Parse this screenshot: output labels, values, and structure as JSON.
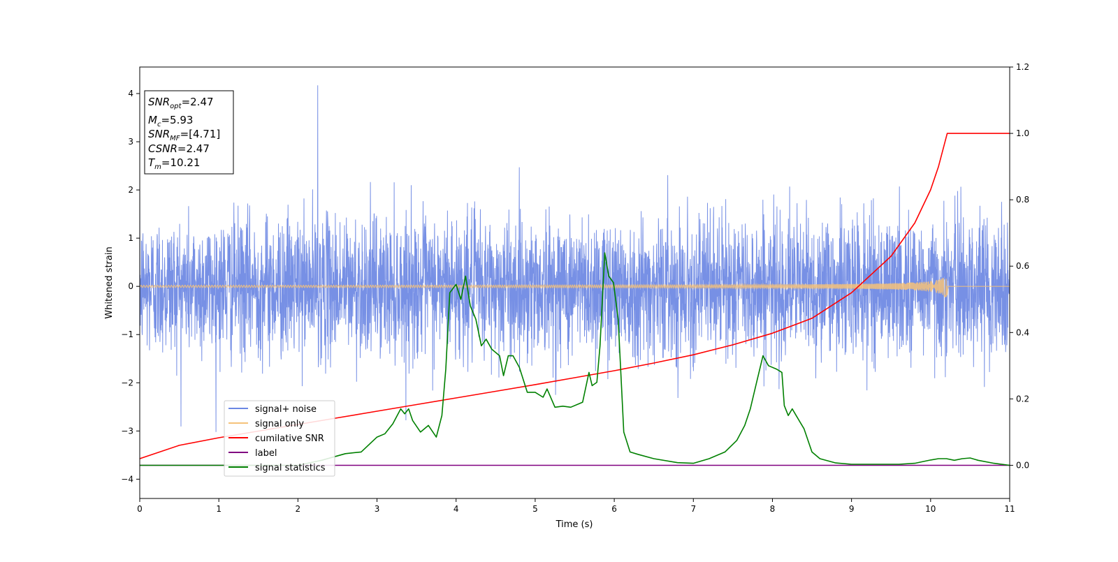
{
  "chart_data": {
    "type": "line",
    "title": "",
    "xlabel": "Time (s)",
    "ylabel": "Whitened strain",
    "y2label": "",
    "xlim": [
      0,
      11
    ],
    "ylim": [
      -4.4,
      4.55
    ],
    "y2lim": [
      -0.1,
      1.2
    ],
    "x_ticks": [
      0,
      1,
      2,
      3,
      4,
      5,
      6,
      7,
      8,
      9,
      10,
      11
    ],
    "x_tick_labels": [
      "0",
      "1",
      "2",
      "3",
      "4",
      "5",
      "6",
      "7",
      "8",
      "9",
      "10",
      "11"
    ],
    "y_ticks": [
      -4,
      -3,
      -2,
      -1,
      0,
      1,
      2,
      3,
      4
    ],
    "y_tick_labels": [
      "−4",
      "−3",
      "−2",
      "−1",
      "0",
      "1",
      "2",
      "3",
      "4"
    ],
    "y2_ticks": [
      0.0,
      0.2,
      0.4,
      0.6,
      0.8,
      1.0,
      1.2
    ],
    "y2_tick_labels": [
      "0.0",
      "0.2",
      "0.4",
      "0.6",
      "0.8",
      "1.0",
      "1.2"
    ],
    "grid": false,
    "legend_position": "lower-left",
    "infobox": {
      "lines": [
        {
          "base": "SNR",
          "sub": "opt",
          "rest": "=2.47"
        },
        {
          "base": "M",
          "sub": "c",
          "rest": "=5.93"
        },
        {
          "base": "SNR",
          "sub": "MF",
          "rest": "=[4.71]"
        },
        {
          "base": "CSNR",
          "sub": "",
          "rest": "=2.47"
        },
        {
          "base": "T",
          "sub": "m",
          "rest": "=10.21"
        }
      ]
    },
    "series": [
      {
        "name": "signal+ noise",
        "axis": "left",
        "color": "#6b87e3",
        "kind": "noise",
        "noise_sigma": 0.72,
        "noise_extreme": 4.17,
        "samples": 4096
      },
      {
        "name": "signal only",
        "axis": "left",
        "color": "#f5c27a",
        "kind": "chirp",
        "chirp_merger_time": 10.21,
        "chirp_peak_amplitude": 0.27
      },
      {
        "name": "cumilative SNR",
        "axis": "right",
        "color": "#ff0000",
        "x": [
          0,
          0.5,
          1,
          1.5,
          2,
          2.5,
          3,
          3.5,
          4,
          4.5,
          5,
          5.5,
          6,
          6.5,
          7,
          7.5,
          8,
          8.5,
          9,
          9.5,
          9.8,
          10,
          10.1,
          10.21,
          10.5,
          11
        ],
        "values": [
          0.02,
          0.06,
          0.083,
          0.103,
          0.123,
          0.143,
          0.163,
          0.183,
          0.203,
          0.223,
          0.243,
          0.264,
          0.285,
          0.308,
          0.333,
          0.363,
          0.398,
          0.443,
          0.52,
          0.63,
          0.73,
          0.83,
          0.9,
          1.0,
          1.0,
          1.0
        ]
      },
      {
        "name": "label",
        "axis": "right",
        "color": "#800080",
        "x": [
          0,
          11
        ],
        "values": [
          0.0,
          0.0
        ]
      },
      {
        "name": "signal statistics",
        "axis": "right",
        "color": "#008000",
        "x": [
          0,
          1.0,
          2.0,
          2.3,
          2.6,
          2.8,
          3.0,
          3.1,
          3.2,
          3.3,
          3.35,
          3.4,
          3.45,
          3.55,
          3.65,
          3.75,
          3.82,
          3.87,
          3.92,
          4.0,
          4.06,
          4.12,
          4.18,
          4.25,
          4.32,
          4.38,
          4.45,
          4.55,
          4.6,
          4.66,
          4.72,
          4.8,
          4.9,
          5.0,
          5.1,
          5.15,
          5.25,
          5.35,
          5.45,
          5.55,
          5.6,
          5.68,
          5.72,
          5.78,
          5.82,
          5.88,
          5.93,
          5.99,
          6.05,
          6.12,
          6.2,
          6.3,
          6.5,
          6.8,
          7.0,
          7.2,
          7.4,
          7.55,
          7.65,
          7.72,
          7.8,
          7.88,
          7.95,
          8.05,
          8.12,
          8.15,
          8.2,
          8.25,
          8.3,
          8.4,
          8.5,
          8.6,
          8.8,
          9.0,
          9.3,
          9.6,
          9.8,
          10.0,
          10.1,
          10.2,
          10.3,
          10.4,
          10.5,
          10.6,
          10.8,
          11.0
        ],
        "values": [
          0.0,
          0.0,
          0.0,
          0.015,
          0.035,
          0.04,
          0.085,
          0.095,
          0.125,
          0.17,
          0.155,
          0.17,
          0.135,
          0.1,
          0.12,
          0.085,
          0.15,
          0.29,
          0.52,
          0.545,
          0.5,
          0.57,
          0.48,
          0.44,
          0.36,
          0.38,
          0.35,
          0.33,
          0.27,
          0.33,
          0.33,
          0.295,
          0.22,
          0.22,
          0.205,
          0.23,
          0.175,
          0.178,
          0.175,
          0.185,
          0.19,
          0.28,
          0.24,
          0.25,
          0.36,
          0.64,
          0.57,
          0.55,
          0.44,
          0.1,
          0.04,
          0.033,
          0.02,
          0.008,
          0.006,
          0.02,
          0.04,
          0.075,
          0.12,
          0.17,
          0.25,
          0.33,
          0.3,
          0.29,
          0.28,
          0.18,
          0.15,
          0.17,
          0.15,
          0.11,
          0.04,
          0.02,
          0.007,
          0.003,
          0.003,
          0.003,
          0.006,
          0.016,
          0.02,
          0.02,
          0.015,
          0.02,
          0.022,
          0.015,
          0.006,
          0.0
        ]
      }
    ]
  }
}
